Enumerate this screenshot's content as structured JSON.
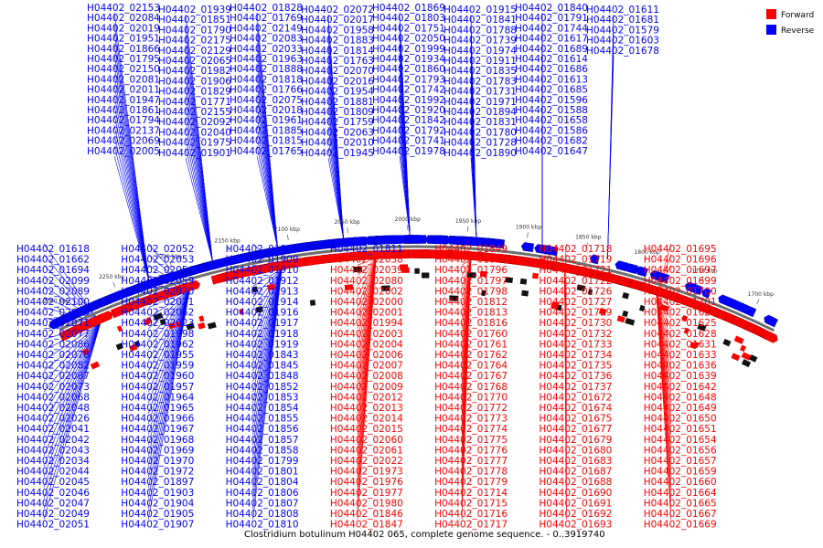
{
  "caption": "Clostridium botulinum H04402 065, complete genome sequence. - 0..3919740",
  "legend": [
    {
      "label": "Forward",
      "color": "#ff0000"
    },
    {
      "label": "Reverse",
      "color": "#0000ff"
    }
  ],
  "colors": {
    "forward": "#ff0000",
    "reverse": "#0000ff",
    "backbone": "#6e6e6e"
  },
  "ticks": [
    "2300 kbp",
    "2250 kbp",
    "2200 kbp",
    "2150 kbp",
    "2100 kbp",
    "2050 kbp",
    "2000 kbp",
    "1950 kbp",
    "1900 kbp",
    "1850 kbp",
    "1800 kbp",
    "1750 kbp",
    "1700 kbp"
  ],
  "reverse_labels": [
    "H04402_02153",
    "H04402_02084",
    "H04402_02019",
    "H04402_01951",
    "H04402_01866",
    "H04402_01795",
    "H04402_02150",
    "H04402_02081",
    "H04402_02011",
    "H04402_01947",
    "H04402_01861",
    "H04402_01794",
    "H04402_02137",
    "H04402_02069",
    "H04402_02005",
    "H04402_01939",
    "H04402_01851",
    "H04402_01790",
    "H04402_02175",
    "H04402_02129",
    "H04402_02065",
    "H04402_01982",
    "H04402_01906",
    "H04402_01829",
    "H04402_01771",
    "H04402_02155",
    "H04402_02092",
    "H04402_02040",
    "H04402_01975",
    "H04402_01901",
    "H04402_01828",
    "H04402_01769",
    "H04402_02149",
    "H04402_02083",
    "H04402_02033",
    "H04402_01963",
    "H04402_01888",
    "H04402_01818",
    "H04402_01766",
    "H04402_02075",
    "H04402_02018",
    "H04402_01961",
    "H04402_01885",
    "H04402_01815",
    "H04402_01765",
    "H04402_02072",
    "H04402_02017",
    "H04402_01958",
    "H04402_01883",
    "H04402_01814",
    "H04402_01763",
    "H04402_02070",
    "H04402_02016",
    "H04402_01954",
    "H04402_01881",
    "H04402_01809",
    "H04402_01759",
    "H04402_02063",
    "H04402_02010",
    "H04402_01945",
    "H04402_01869",
    "H04402_01803",
    "H04402_01751",
    "H04402_02050",
    "H04402_01999",
    "H04402_01934",
    "H04402_01860",
    "H04402_01793",
    "H04402_01742",
    "H04402_01992",
    "H04402_01920",
    "H04402_01842",
    "H04402_01792",
    "H04402_01741",
    "H04402_01978",
    "H04402_01915",
    "H04402_01841",
    "H04402_01788",
    "H04402_01739",
    "H04402_01974",
    "H04402_01911",
    "H04402_01835",
    "H04402_01783",
    "H04402_01731",
    "H04402_01971",
    "H04402_01894",
    "H04402_01831",
    "H04402_01780",
    "H04402_01728",
    "H04402_01890",
    "H04402_01840",
    "H04402_01791",
    "H04402_01744",
    "H04402_01617",
    "H04402_01689",
    "H04402_01614",
    "H04402_01686",
    "H04402_01613",
    "H04402_01685",
    "H04402_01596",
    "H04402_01588",
    "H04402_01658",
    "H04402_01586",
    "H04402_01682",
    "H04402_01647",
    "H04402_01611",
    "H04402_01681",
    "H04402_01579",
    "H04402_01603",
    "H04402_01678",
    "H04402_01618",
    "H04402_01662",
    "H04402_01694",
    "H04402_02099",
    "H04402_02089",
    "H04402_02100",
    "H04402_02085",
    "H04402_02071",
    "H04402_02077",
    "H04402_02086",
    "H04402_02078",
    "H04402_02082",
    "H04402_02087",
    "H04402_02073",
    "H04402_02068",
    "H04402_02048",
    "H04402_02026",
    "H04402_02041",
    "H04402_02042",
    "H04402_02043",
    "H04402_02034",
    "H04402_02044",
    "H04402_02045",
    "H04402_02046",
    "H04402_02047",
    "H04402_02049",
    "H04402_02051",
    "H04402_02052",
    "H04402_02053",
    "H04402_02054",
    "H04402_02059",
    "H04402_02020",
    "H04402_02021",
    "H04402_02062",
    "H04402_02023",
    "H04402_01998",
    "H04402_01962",
    "H04402_01955",
    "H04402_01959",
    "H04402_01960",
    "H04402_01957",
    "H04402_01964",
    "H04402_01965",
    "H04402_01966",
    "H04402_01967",
    "H04402_01968",
    "H04402_01969",
    "H04402_01970",
    "H04402_01972",
    "H04402_01897",
    "H04402_01903",
    "H04402_01904",
    "H04402_01905",
    "H04402_01907",
    "H04402_01908",
    "H04402_01909",
    "H04402_01910",
    "H04402_01912",
    "H04402_01913",
    "H04402_01914",
    "H04402_01916",
    "H04402_01917",
    "H04402_01918",
    "H04402_01919",
    "H04402_01843",
    "H04402_01845",
    "H04402_01848",
    "H04402_01852",
    "H04402_01853",
    "H04402_01854",
    "H04402_01855",
    "H04402_01856",
    "H04402_01857",
    "H04402_01858",
    "H04402_01799",
    "H04402_01801",
    "H04402_01804",
    "H04402_01806",
    "H04402_01807",
    "H04402_01808",
    "H04402_01810",
    "H04402_01811"
  ],
  "forward_labels": [
    "H04402_02038",
    "H04402_02039",
    "H04402_02080",
    "H04402_02002",
    "H04402_02000",
    "H04402_02001",
    "H04402_01994",
    "H04402_02003",
    "H04402_02004",
    "H04402_02006",
    "H04402_02007",
    "H04402_02008",
    "H04402_02009",
    "H04402_02012",
    "H04402_02013",
    "H04402_02014",
    "H04402_02015",
    "H04402_02060",
    "H04402_02061",
    "H04402_02022",
    "H04402_01973",
    "H04402_01976",
    "H04402_01977",
    "H04402_01980",
    "H04402_01846",
    "H04402_01847",
    "H04402_01849",
    "H04402_01850",
    "H04402_01796",
    "H04402_01797",
    "H04402_01798",
    "H04402_01812",
    "H04402_01813",
    "H04402_01816",
    "H04402_01760",
    "H04402_01761",
    "H04402_01762",
    "H04402_01764",
    "H04402_01767",
    "H04402_01768",
    "H04402_01770",
    "H04402_01772",
    "H04402_01773",
    "H04402_01774",
    "H04402_01775",
    "H04402_01776",
    "H04402_01777",
    "H04402_01778",
    "H04402_01779",
    "H04402_01714",
    "H04402_01715",
    "H04402_01716",
    "H04402_01717",
    "H04402_01718",
    "H04402_01719",
    "H04402_01721",
    "H04402_01722",
    "H04402_01726",
    "H04402_01727",
    "H04402_01729",
    "H04402_01730",
    "H04402_01732",
    "H04402_01733",
    "H04402_01734",
    "H04402_01735",
    "H04402_01736",
    "H04402_01737",
    "H04402_01672",
    "H04402_01674",
    "H04402_01675",
    "H04402_01677",
    "H04402_01679",
    "H04402_01680",
    "H04402_01683",
    "H04402_01687",
    "H04402_01688",
    "H04402_01690",
    "H04402_01691",
    "H04402_01692",
    "H04402_01693",
    "H04402_01695",
    "H04402_01696",
    "H04402_01697",
    "H04402_01699",
    "H04402_01700",
    "H04402_01701",
    "H04402_01622",
    "H04402_01625",
    "H04402_01628",
    "H04402_01631",
    "H04402_01633",
    "H04402_01636",
    "H04402_01639",
    "H04402_01642",
    "H04402_01648",
    "H04402_01649",
    "H04402_01650",
    "H04402_01651",
    "H04402_01654",
    "H04402_01656",
    "H04402_01657",
    "H04402_01659",
    "H04402_01660",
    "H04402_01664",
    "H04402_01665",
    "H04402_01667",
    "H04402_01669"
  ]
}
